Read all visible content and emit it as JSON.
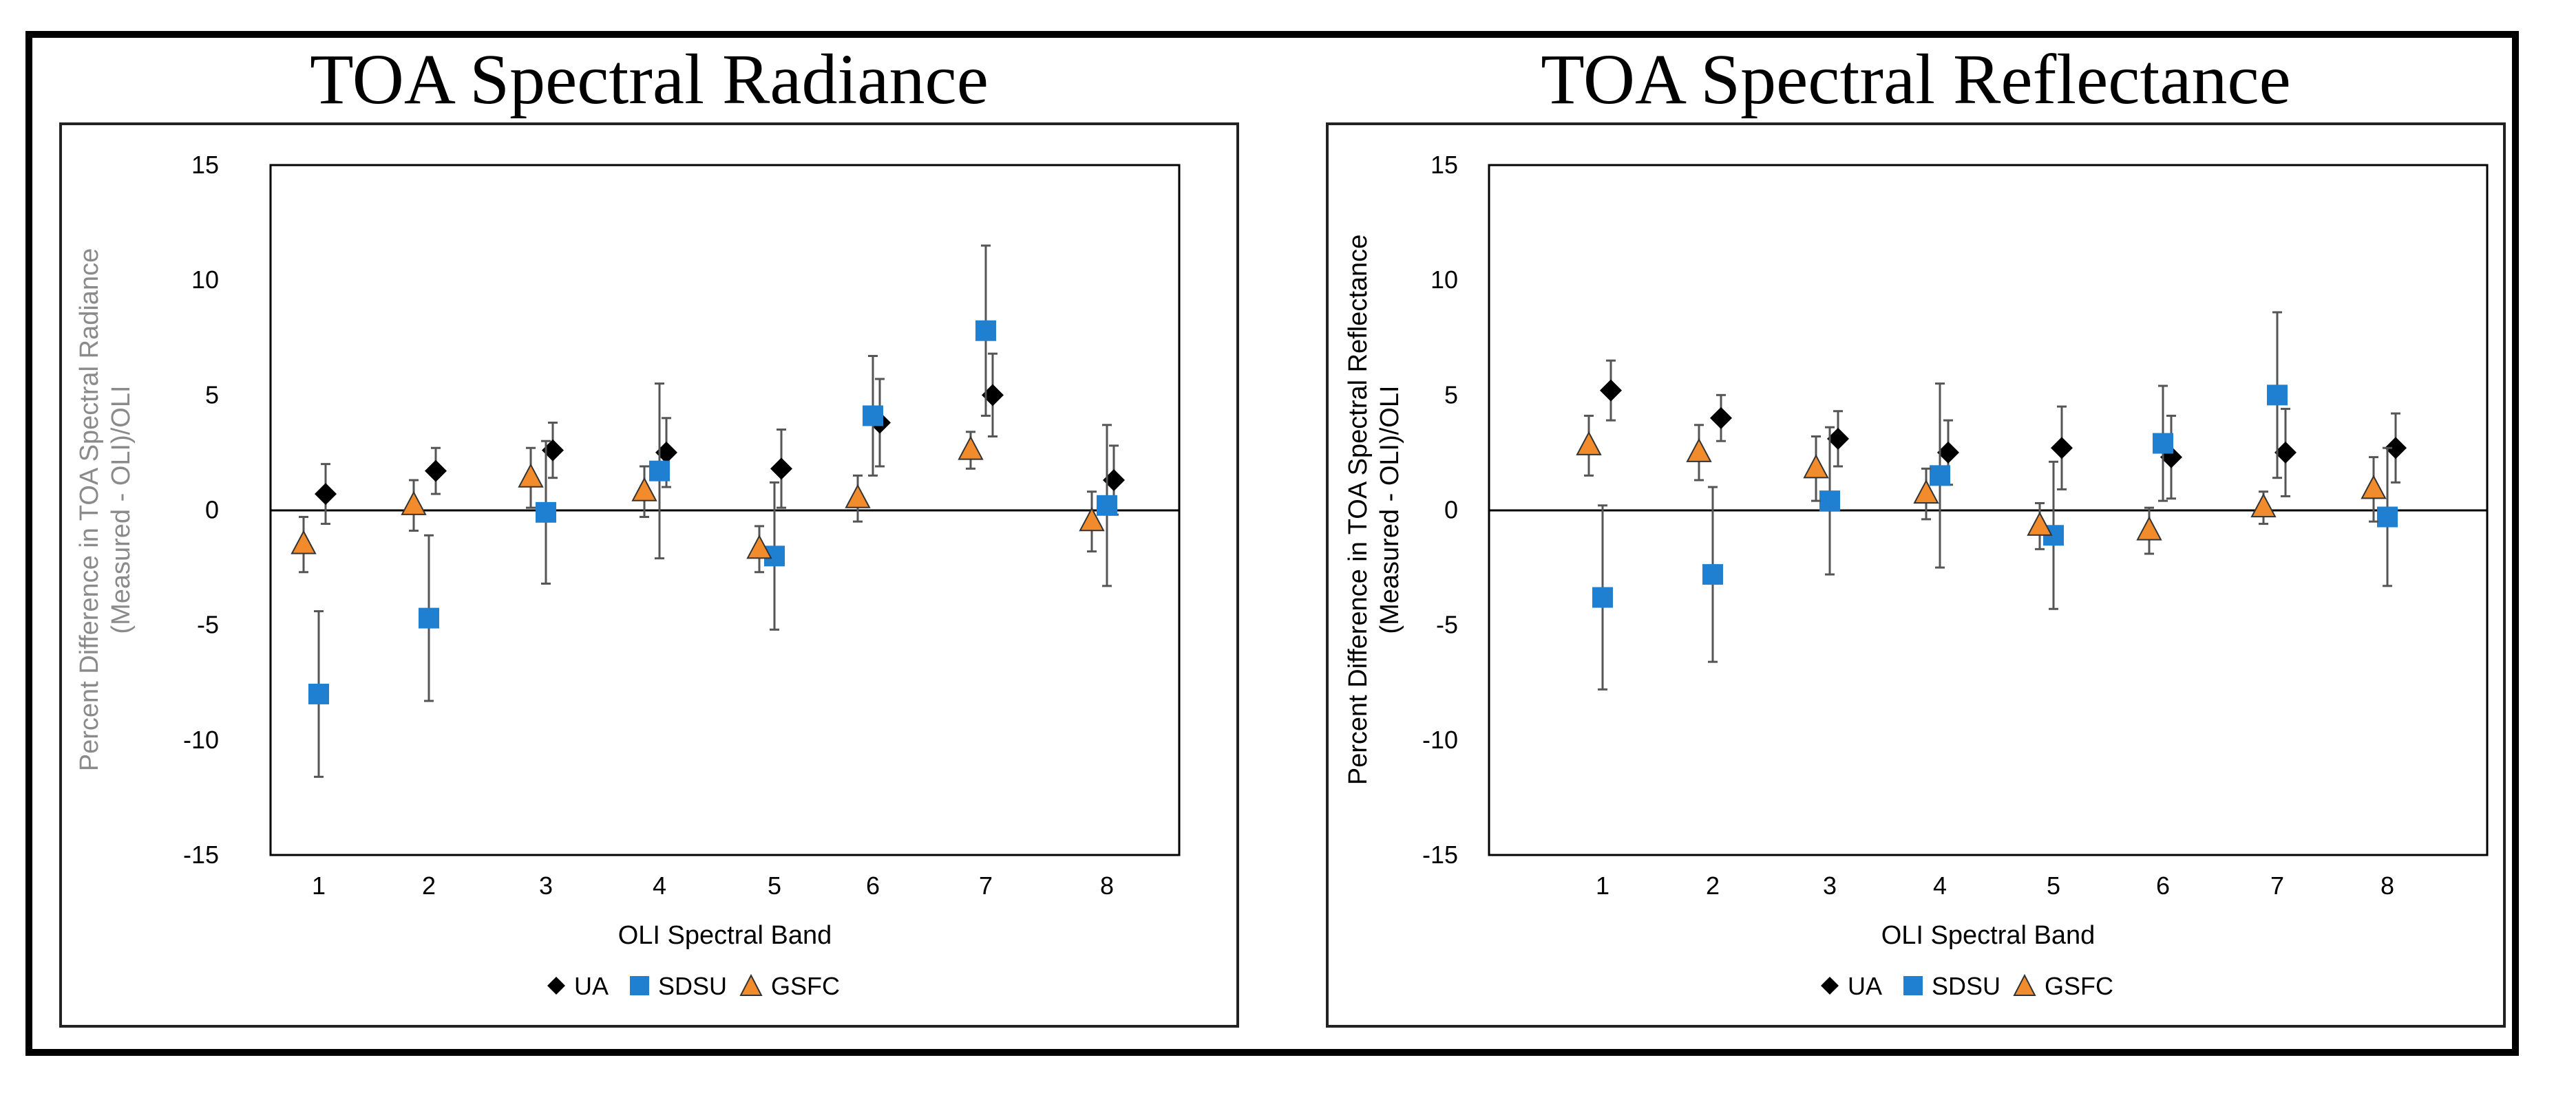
{
  "chart_data": [
    {
      "type": "scatter",
      "title": "TOA Spectral Radiance",
      "xlabel": "OLI Spectral Band",
      "ylabel": [
        "Percent Difference in TOA Spectral Radiance",
        "(Measured - OLI)/OLI"
      ],
      "ylim": [
        -15,
        15
      ],
      "yticks": [
        -15,
        -10,
        -5,
        0,
        5,
        10,
        15
      ],
      "categories": [
        "1",
        "2",
        "3",
        "4",
        "5",
        "6",
        "7",
        "8"
      ],
      "grid": false,
      "legend": "bottom",
      "series": [
        {
          "name": "UA",
          "color": "#000000",
          "marker": "diamond",
          "values": [
            0.7,
            1.7,
            2.6,
            2.5,
            1.8,
            3.8,
            5.0,
            1.3
          ],
          "errors": [
            1.3,
            1.0,
            1.2,
            1.5,
            1.7,
            1.9,
            1.8,
            1.5
          ]
        },
        {
          "name": "SDSU",
          "color": "#1f7fd1",
          "marker": "square",
          "values": [
            -8.0,
            -4.7,
            -0.1,
            1.7,
            -2.0,
            4.1,
            7.8,
            0.2
          ],
          "errors": [
            3.6,
            3.6,
            3.1,
            3.8,
            3.2,
            2.6,
            3.7,
            3.5
          ]
        },
        {
          "name": "GSFC",
          "color": "#f28b2c",
          "marker": "triangle",
          "values": [
            -1.5,
            0.2,
            1.4,
            0.8,
            -1.7,
            0.5,
            2.6,
            -0.5
          ],
          "errors": [
            1.2,
            1.1,
            1.3,
            1.1,
            1.0,
            1.0,
            0.8,
            1.3
          ]
        }
      ]
    },
    {
      "type": "scatter",
      "title": "TOA Spectral Reflectance",
      "xlabel": "OLI Spectral Band",
      "ylabel": [
        "Percent Difference in TOA Spectral Reflectance",
        "(Measured - OLI)/OLI"
      ],
      "ylim": [
        -15,
        15
      ],
      "yticks": [
        -15,
        -10,
        -5,
        0,
        5,
        10,
        15
      ],
      "categories": [
        "1",
        "2",
        "3",
        "4",
        "5",
        "6",
        "7",
        "8"
      ],
      "grid": false,
      "legend": "bottom",
      "series": [
        {
          "name": "UA",
          "color": "#000000",
          "marker": "diamond",
          "values": [
            5.2,
            4.0,
            3.1,
            2.5,
            2.7,
            2.3,
            2.5,
            2.7
          ],
          "errors": [
            1.3,
            1.0,
            1.2,
            1.4,
            1.8,
            1.8,
            1.9,
            1.5
          ]
        },
        {
          "name": "SDSU",
          "color": "#1f7fd1",
          "marker": "square",
          "values": [
            -3.8,
            -2.8,
            0.4,
            1.5,
            -1.1,
            2.9,
            5.0,
            -0.3
          ],
          "errors": [
            4.0,
            3.8,
            3.2,
            4.0,
            3.2,
            2.5,
            3.6,
            3.0
          ]
        },
        {
          "name": "GSFC",
          "color": "#f28b2c",
          "marker": "triangle",
          "values": [
            2.8,
            2.5,
            1.8,
            0.7,
            -0.7,
            -0.9,
            0.1,
            0.9
          ],
          "errors": [
            1.3,
            1.2,
            1.4,
            1.1,
            1.0,
            1.0,
            0.7,
            1.4
          ]
        }
      ]
    }
  ]
}
